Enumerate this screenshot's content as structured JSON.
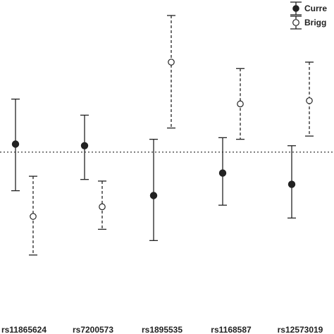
{
  "chart_data": {
    "type": "scatter",
    "categories": [
      "rs11865624",
      "rs7200573",
      "rs1895535",
      "rs1168587",
      "rs12573019"
    ],
    "reference_line": 1.0,
    "ylim": [
      0.25,
      1.85
    ],
    "series": [
      {
        "name": "Curre",
        "marker": "filled-circle",
        "line_style": "solid",
        "color": "#222222",
        "points": [
          {
            "x": "rs11865624",
            "y": 1.05,
            "lower": 0.76,
            "upper": 1.33
          },
          {
            "x": "rs7200573",
            "y": 1.04,
            "lower": 0.83,
            "upper": 1.23
          },
          {
            "x": "rs1895535",
            "y": 0.73,
            "lower": 0.45,
            "upper": 1.08
          },
          {
            "x": "rs1168587",
            "y": 0.87,
            "lower": 0.67,
            "upper": 1.09
          },
          {
            "x": "rs12573019",
            "y": 0.8,
            "lower": 0.59,
            "upper": 1.04
          }
        ]
      },
      {
        "name": "Brigg",
        "marker": "open-circle",
        "line_style": "dashed",
        "color": "#222222",
        "points": [
          {
            "x": "rs11865624",
            "y": 0.6,
            "lower": 0.36,
            "upper": 0.85
          },
          {
            "x": "rs7200573",
            "y": 0.66,
            "lower": 0.52,
            "upper": 0.82
          },
          {
            "x": "rs1895535",
            "y": 1.56,
            "lower": 1.15,
            "upper": 1.85
          },
          {
            "x": "rs1168587",
            "y": 1.3,
            "lower": 1.08,
            "upper": 1.52
          },
          {
            "x": "rs12573019",
            "y": 1.32,
            "lower": 1.1,
            "upper": 1.56
          }
        ]
      }
    ],
    "legend_position": "top-right",
    "grid": false
  }
}
